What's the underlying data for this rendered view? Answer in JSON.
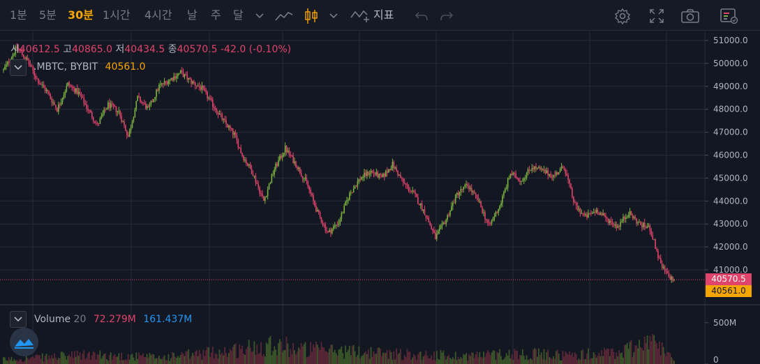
{
  "toolbar": {
    "intervals": [
      {
        "label": "1분",
        "active": false
      },
      {
        "label": "5분",
        "active": false
      },
      {
        "label": "30분",
        "active": true
      },
      {
        "label": "1시간",
        "active": false
      },
      {
        "label": "4시간",
        "active": false
      },
      {
        "label": "날",
        "active": false
      },
      {
        "label": "주",
        "active": false
      },
      {
        "label": "달",
        "active": false
      }
    ],
    "indicators_label": "지표",
    "icons": [
      "chevron-down-icon",
      "line-chart-icon",
      "candlestick-icon",
      "indicator-icon",
      "undo-icon",
      "redo-icon",
      "gear-icon",
      "fullscreen-icon",
      "camera-icon",
      "layout-icon"
    ]
  },
  "ohlc": {
    "open_label": "시",
    "open": "40612.5",
    "high_label": "고",
    "high": "40865.0",
    "low_label": "저",
    "low": "40434.5",
    "close_label": "종",
    "close": "40570.5",
    "change": "-42.0 (-0.10%)"
  },
  "symbol": {
    "name": ".MBTC, BYBIT",
    "value": "40561.0"
  },
  "volume": {
    "label": "Volume",
    "period": "20",
    "value1": "72.279M",
    "value2": "161.437M"
  },
  "last_price_tag": "40570.5",
  "mark_price_tag": "40561.0",
  "colors": {
    "up": "#7cb342",
    "down": "#e0446b",
    "accent": "#f7a600",
    "background": "#131722"
  },
  "chart_data": {
    "type": "candlestick",
    "y_ticks": [
      "51000.0",
      "50000.0",
      "49000.0",
      "48000.0",
      "47000.0",
      "46000.0",
      "45000.0",
      "44000.0",
      "43000.0",
      "42000.0",
      "41000.0"
    ],
    "ylim": [
      40000,
      51300
    ],
    "volume_ticks": [
      "500M",
      "0"
    ],
    "volume_ylim": [
      0,
      650
    ],
    "price_path": [
      [
        0,
        49700
      ],
      [
        10,
        50700
      ],
      [
        18,
        50100
      ],
      [
        25,
        49300
      ],
      [
        32,
        48800
      ],
      [
        40,
        48000
      ],
      [
        48,
        49100
      ],
      [
        56,
        48700
      ],
      [
        63,
        48000
      ],
      [
        70,
        47300
      ],
      [
        78,
        48200
      ],
      [
        86,
        47900
      ],
      [
        93,
        46800
      ],
      [
        100,
        48500
      ],
      [
        108,
        48000
      ],
      [
        116,
        49000
      ],
      [
        124,
        49300
      ],
      [
        132,
        49600
      ],
      [
        140,
        49200
      ],
      [
        148,
        48900
      ],
      [
        156,
        48200
      ],
      [
        164,
        47500
      ],
      [
        172,
        46900
      ],
      [
        178,
        46000
      ],
      [
        186,
        45200
      ],
      [
        194,
        44000
      ],
      [
        202,
        45400
      ],
      [
        210,
        46300
      ],
      [
        218,
        45600
      ],
      [
        226,
        44800
      ],
      [
        234,
        43500
      ],
      [
        242,
        42600
      ],
      [
        250,
        43100
      ],
      [
        258,
        44300
      ],
      [
        266,
        45000
      ],
      [
        274,
        45300
      ],
      [
        282,
        45000
      ],
      [
        290,
        45600
      ],
      [
        298,
        44800
      ],
      [
        306,
        44300
      ],
      [
        314,
        43500
      ],
      [
        322,
        42400
      ],
      [
        330,
        43200
      ],
      [
        338,
        44300
      ],
      [
        346,
        44700
      ],
      [
        354,
        44000
      ],
      [
        362,
        42900
      ],
      [
        370,
        43800
      ],
      [
        378,
        45200
      ],
      [
        386,
        44900
      ],
      [
        394,
        45500
      ],
      [
        402,
        45300
      ],
      [
        410,
        45100
      ],
      [
        418,
        45500
      ],
      [
        426,
        43800
      ],
      [
        434,
        43300
      ],
      [
        442,
        43600
      ],
      [
        450,
        43200
      ],
      [
        458,
        42900
      ],
      [
        466,
        43500
      ],
      [
        474,
        43000
      ],
      [
        482,
        42800
      ],
      [
        490,
        41200
      ],
      [
        496,
        40700
      ],
      [
        500,
        40570
      ]
    ],
    "volume_profile": [
      [
        0,
        60
      ],
      [
        60,
        120
      ],
      [
        120,
        90
      ],
      [
        180,
        200
      ],
      [
        200,
        280
      ],
      [
        220,
        200
      ],
      [
        260,
        170
      ],
      [
        300,
        130
      ],
      [
        340,
        110
      ],
      [
        380,
        140
      ],
      [
        420,
        120
      ],
      [
        460,
        150
      ],
      [
        480,
        330
      ],
      [
        500,
        90
      ]
    ]
  }
}
